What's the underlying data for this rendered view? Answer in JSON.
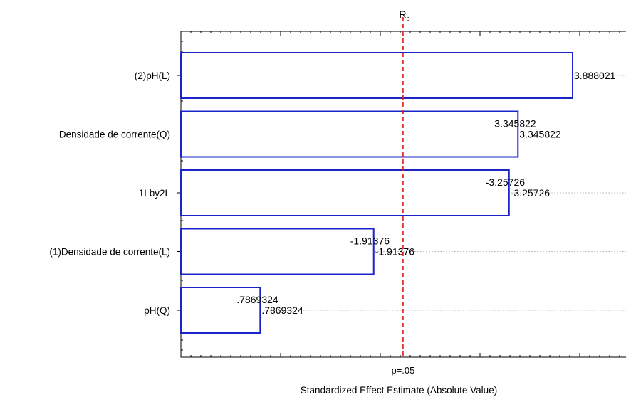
{
  "chart_data": {
    "type": "bar",
    "orientation": "horizontal",
    "title": "R",
    "title_subscript": "p",
    "xlabel": "Standardized Effect Estimate (Absolute Value)",
    "ylabel": "",
    "categories": [
      "(2)pH(L)",
      "Densidade de corrente(Q)",
      "1Lby2L",
      "(1)Densidade de corrente(L)",
      "pH(Q)"
    ],
    "values": [
      3.888021,
      3.345822,
      3.25726,
      1.91376,
      0.7869324
    ],
    "value_labels": [
      "3.888021",
      "3.345822",
      "-3.25726",
      "-1.91376",
      ".7869324"
    ],
    "xlim": [
      0,
      4.2
    ],
    "grid": true,
    "reference_line": {
      "value": 2.0,
      "label": "p=.05"
    },
    "colors": {
      "bar_edge": "#1a24c8",
      "bar_fill": "#ffffff",
      "reference_line": "#e01b1b",
      "grid": "#b0b0b0"
    }
  }
}
